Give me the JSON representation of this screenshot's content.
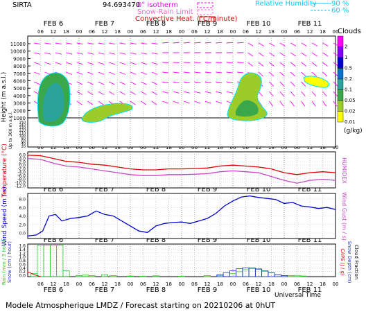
{
  "header": {
    "site": "SIRTA",
    "coord": "94.693470",
    "legend": {
      "isotherm": "0° isotherm",
      "snow_rain": "Snow-Rain Limit",
      "convective": "Convective Heat. (°C/minute)",
      "rh_label": "Relative Humidity",
      "rh_90": "90 %",
      "rh_60": "60 %"
    }
  },
  "days": [
    "FEB 6",
    "FEB 7",
    "FEB 8",
    "FEB 9",
    "FEB 10",
    "FEB 11"
  ],
  "hours": [
    "06",
    "12",
    "18",
    "00"
  ],
  "clouds_scale": {
    "title": "Clouds",
    "unit": "(g/kg)",
    "labels": [
      "2",
      "1",
      "0.5",
      "0.2",
      "0.1",
      "0.05",
      "0.02",
      "0.01"
    ],
    "colors": [
      "#ff00ff",
      "#8000ff",
      "#0000d0",
      "#0a70c8",
      "#2aa39a",
      "#3aa84a",
      "#9ccc2a",
      "#ffff00"
    ]
  },
  "chart_data": [
    {
      "type": "area",
      "panel": "clouds",
      "ylabel": "Height (m a.s.l.)",
      "ylabel2": "Up to 300 m a.g.l.",
      "y_ticks": [
        "11000",
        "10000",
        "9000",
        "8000",
        "7000",
        "6000",
        "5000",
        "4000",
        "3000",
        "2000",
        "1000",
        "150",
        "140",
        "130",
        "120",
        "110",
        "100",
        "80",
        "60",
        "40",
        "20"
      ],
      "cloud_blobs": [
        {
          "x_h": 13,
          "top_m": 7200,
          "bottom_m": 400,
          "max_level": "0.5"
        },
        {
          "x_h": 36,
          "top_m": 2200,
          "bottom_m": 900,
          "max_level": "0.1"
        },
        {
          "x_h": 105,
          "top_m": 7500,
          "bottom_m": 900,
          "max_level": "0.2"
        },
        {
          "x_h": 122,
          "top_m": 6200,
          "bottom_m": 4600,
          "max_level": "0.05"
        }
      ]
    },
    {
      "type": "line",
      "panel": "temperature",
      "ylabel": "Temperature (°C)",
      "ylabel2": "HUMIDEX",
      "y_ticks": [
        "6.0",
        "4.0",
        "2.0",
        "0.0",
        "-2.0",
        "-4.0",
        "-6.0",
        "-8.0",
        "-10.0",
        "-12.0"
      ],
      "ylim": [
        -12,
        7
      ],
      "series": [
        {
          "color": "#dd0000",
          "x": [
            0,
            6,
            12,
            18,
            24,
            30,
            36,
            42,
            48,
            54,
            60,
            66,
            72,
            78,
            84,
            90,
            96,
            102,
            108,
            114,
            120,
            126,
            132,
            138,
            144
          ],
          "values": [
            5.2,
            5.0,
            3.5,
            2.0,
            1.5,
            0.5,
            0.0,
            -1.0,
            -2.0,
            -2.5,
            -2.5,
            -2.0,
            -2.0,
            -1.8,
            -1.5,
            -0.5,
            0.0,
            -0.5,
            -1.0,
            -2.0,
            -4.0,
            -5.0,
            -4.0,
            -3.5,
            -4.0
          ]
        },
        {
          "color": "#cc44cc",
          "x": [
            0,
            6,
            12,
            18,
            24,
            30,
            36,
            42,
            48,
            54,
            60,
            66,
            72,
            78,
            84,
            90,
            96,
            102,
            108,
            114,
            120,
            126,
            132,
            138,
            144
          ],
          "values": [
            3.5,
            3.0,
            1.0,
            -0.5,
            -1.0,
            -2.0,
            -3.0,
            -4.0,
            -5.0,
            -5.5,
            -5.5,
            -5.0,
            -5.0,
            -4.8,
            -4.5,
            -3.5,
            -3.0,
            -3.5,
            -4.0,
            -6.0,
            -8.0,
            -9.5,
            -8.0,
            -7.5,
            -8.0
          ]
        }
      ]
    },
    {
      "type": "line",
      "panel": "wind",
      "ylabel": "Wind Speed (m / s)",
      "ylabel2": "Wind Gust (m / s)",
      "y_ticks": [
        "8.0",
        "6.0",
        "4.0",
        "2.0",
        "0.0"
      ],
      "ylim": [
        0,
        9
      ],
      "series": [
        {
          "color": "#0000cc",
          "x": [
            0,
            4,
            7,
            10,
            13,
            16,
            20,
            24,
            28,
            32,
            36,
            40,
            44,
            48,
            52,
            56,
            60,
            64,
            68,
            72,
            76,
            80,
            84,
            88,
            92,
            96,
            100,
            104,
            108,
            112,
            116,
            120,
            124,
            128,
            132,
            136,
            140,
            144
          ],
          "values": [
            0.5,
            0.7,
            1.5,
            4.5,
            4.8,
            3.5,
            4.0,
            4.2,
            4.5,
            5.5,
            4.8,
            4.5,
            3.5,
            2.5,
            1.5,
            1.2,
            2.5,
            3.0,
            3.2,
            3.3,
            3.0,
            3.5,
            4.0,
            5.0,
            6.5,
            7.5,
            8.3,
            8.5,
            8.2,
            8.0,
            7.8,
            7.0,
            7.2,
            6.5,
            6.3,
            6.0,
            6.2,
            5.8
          ]
        }
      ]
    },
    {
      "type": "bar",
      "panel": "precipitation",
      "ylabel": "Rain (mm / 3 hour)",
      "ylabel_snow": "Snow (cm / hour)",
      "ylabel2": "CAPE (J / g)",
      "ylabel3": "Snow Depth (cm)",
      "ylabel4": "Cloud Fraction",
      "y_ticks": [
        "1.6",
        "1.4",
        "1.2",
        "1.0",
        "0.8",
        "0.6",
        "0.4",
        "0.2",
        "0.0"
      ],
      "ylim": [
        0,
        1.65
      ],
      "series": [
        {
          "name": "rain",
          "color": "#22cc22",
          "x": [
            3,
            6,
            9,
            12,
            15,
            18,
            24,
            27,
            30,
            36,
            40,
            48,
            54,
            60,
            72,
            84,
            90,
            96,
            99,
            102,
            105,
            108,
            111,
            114,
            117,
            120,
            123,
            126,
            129
          ],
          "values": [
            0.15,
            1.6,
            1.6,
            1.6,
            1.6,
            0.3,
            0.05,
            0.08,
            0.05,
            0.1,
            0.05,
            0.03,
            0.02,
            0.04,
            0.02,
            0.05,
            0.06,
            0.15,
            0.25,
            0.35,
            0.45,
            0.4,
            0.3,
            0.2,
            0.1,
            0.05,
            0.05,
            0.06,
            0.03
          ]
        },
        {
          "name": "snow",
          "color": "#2233cc",
          "x": [
            90,
            93,
            96,
            99,
            102,
            105,
            108,
            111,
            114,
            117,
            120
          ],
          "values": [
            0.1,
            0.2,
            0.3,
            0.4,
            0.45,
            0.42,
            0.38,
            0.28,
            0.2,
            0.1,
            0.05
          ]
        },
        {
          "name": "cape",
          "color": "#dd0000",
          "x": [
            0,
            3,
            6
          ],
          "values": [
            0.25,
            0.1,
            0.0
          ]
        }
      ]
    }
  ],
  "footer": {
    "xlabel": "Universal Time",
    "caption": "Modele Atmospherique LMDZ / Forecast starting on 20210206 at 0hUT"
  }
}
